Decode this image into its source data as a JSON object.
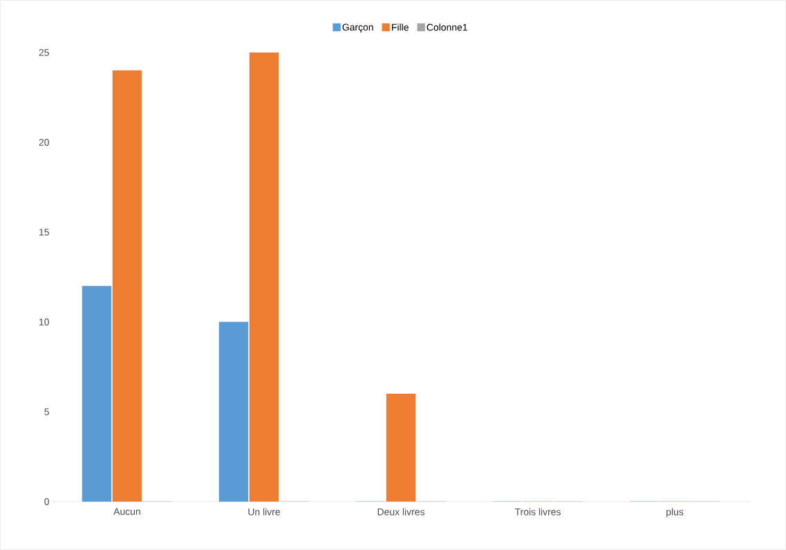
{
  "chart_data": {
    "type": "bar",
    "categories": [
      "Aucun",
      "Un livre",
      "Deux livres",
      "Trois livres",
      "plus"
    ],
    "series": [
      {
        "name": "Garçon",
        "color": "#5b9bd5",
        "values": [
          12,
          10,
          0,
          0,
          0
        ]
      },
      {
        "name": "Fille",
        "color": "#ed7d31",
        "values": [
          24,
          25,
          6,
          0,
          0
        ]
      },
      {
        "name": "Colonne1",
        "color": "#a5a5a5",
        "values": [
          0,
          0,
          0,
          0,
          0
        ]
      }
    ],
    "ylim": [
      0,
      25
    ],
    "yticks": [
      0,
      5,
      10,
      15,
      20,
      25
    ],
    "grid": false,
    "legend": "top"
  }
}
